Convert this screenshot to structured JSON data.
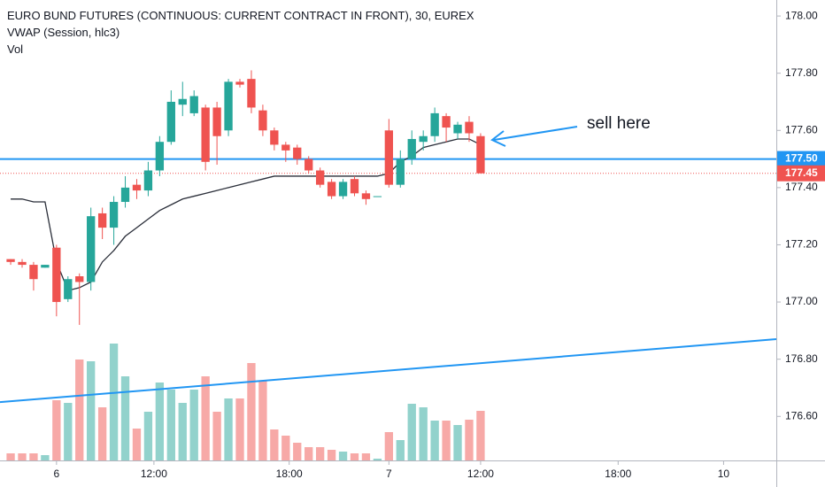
{
  "chart_data": {
    "type": "candlestick",
    "title": "EURO BUND FUTURES (CONTINUOUS: CURRENT CONTRACT IN FRONT), 30, EUREX",
    "legend": [
      "VWAP (Session, hlc3)",
      "Vol"
    ],
    "up_color": "#26a69a",
    "down_color": "#ef5350",
    "volume_up_color": "#92d2cc",
    "volume_down_color": "#f7a9a7",
    "x": [
      0,
      1,
      2,
      3,
      4,
      5,
      6,
      7,
      8,
      9,
      10,
      11,
      12,
      13,
      14,
      15,
      16,
      17,
      18,
      19,
      20,
      21,
      22,
      23,
      24,
      25,
      26,
      27,
      28,
      29,
      30,
      31,
      32,
      33,
      34,
      35,
      36,
      37,
      38,
      39,
      40,
      41
    ],
    "open": [
      177.15,
      177.14,
      177.13,
      177.12,
      177.19,
      177.01,
      177.09,
      177.07,
      177.31,
      177.26,
      177.35,
      177.41,
      177.39,
      177.46,
      177.56,
      177.69,
      177.66,
      177.68,
      177.68,
      177.6,
      177.77,
      177.78,
      177.67,
      177.6,
      177.55,
      177.54,
      177.5,
      177.46,
      177.42,
      177.37,
      177.43,
      177.38,
      177.37,
      177.6,
      177.41,
      177.5,
      177.56,
      177.58,
      177.65,
      177.59,
      177.63,
      177.58
    ],
    "high": [
      177.15,
      177.15,
      177.14,
      177.13,
      177.2,
      177.09,
      177.1,
      177.33,
      177.33,
      177.37,
      177.44,
      177.43,
      177.49,
      177.58,
      177.74,
      177.77,
      177.74,
      177.69,
      177.7,
      177.78,
      177.78,
      177.81,
      177.69,
      177.61,
      177.56,
      177.55,
      177.51,
      177.47,
      177.43,
      177.43,
      177.44,
      177.39,
      177.37,
      177.64,
      177.53,
      177.6,
      177.6,
      177.68,
      177.66,
      177.63,
      177.65,
      177.59
    ],
    "low": [
      177.13,
      177.12,
      177.04,
      177.12,
      176.95,
      177.0,
      176.92,
      177.04,
      177.22,
      177.2,
      177.33,
      177.36,
      177.37,
      177.44,
      177.55,
      177.65,
      177.65,
      177.46,
      177.48,
      177.58,
      177.75,
      177.66,
      177.58,
      177.53,
      177.49,
      177.48,
      177.45,
      177.4,
      177.36,
      177.36,
      177.37,
      177.34,
      177.37,
      177.4,
      177.4,
      177.48,
      177.53,
      177.56,
      177.56,
      177.57,
      177.56,
      177.45
    ],
    "close": [
      177.14,
      177.13,
      177.08,
      177.13,
      177.0,
      177.08,
      177.07,
      177.3,
      177.26,
      177.35,
      177.4,
      177.39,
      177.46,
      177.56,
      177.7,
      177.71,
      177.72,
      177.49,
      177.58,
      177.77,
      177.76,
      177.68,
      177.6,
      177.55,
      177.53,
      177.5,
      177.46,
      177.41,
      177.37,
      177.42,
      177.38,
      177.36,
      177.37,
      177.41,
      177.5,
      177.57,
      177.58,
      177.66,
      177.61,
      177.62,
      177.59,
      177.45
    ],
    "volume": {
      "name": "Vol",
      "values": [
        8,
        8,
        8,
        6,
        68,
        65,
        114,
        112,
        60,
        132,
        95,
        36,
        55,
        88,
        80,
        65,
        80,
        95,
        55,
        70,
        70,
        110,
        90,
        35,
        28,
        20,
        15,
        15,
        12,
        10,
        8,
        8,
        2,
        32,
        23,
        64,
        60,
        45,
        45,
        40,
        46,
        56
      ]
    },
    "vwap": {
      "name": "VWAP (Session, hlc3)",
      "color": "#2a2e39",
      "values": [
        177.36,
        177.36,
        177.35,
        177.35,
        177.14,
        177.04,
        177.05,
        177.07,
        177.14,
        177.18,
        177.23,
        177.26,
        177.29,
        177.32,
        177.34,
        177.36,
        177.37,
        177.38,
        177.39,
        177.4,
        177.41,
        177.42,
        177.43,
        177.44,
        177.44,
        177.44,
        177.44,
        177.44,
        177.44,
        177.44,
        177.44,
        177.44,
        177.44,
        177.45,
        177.49,
        177.51,
        177.54,
        177.55,
        177.56,
        177.57,
        177.57,
        177.55
      ]
    },
    "hlines": [
      {
        "value": 177.5,
        "label": "177.50",
        "color": "#2196f3",
        "style": "solid"
      },
      {
        "value": 177.45,
        "label": "177.45",
        "color": "#ef5350",
        "style": "dotted"
      }
    ],
    "trendline": {
      "color": "#2196f3",
      "x": [
        -0.93,
        66.8
      ],
      "values": [
        176.65,
        176.87
      ]
    },
    "annotation": {
      "text": "sell here",
      "color": "#2196f3"
    },
    "xlim": [
      -0.93,
      66.8
    ],
    "ylim": [
      176.446,
      178.056
    ],
    "xticks": [
      {
        "value": 4,
        "label": "6"
      },
      {
        "value": 12.5,
        "label": "12:00"
      },
      {
        "value": 24.3,
        "label": "18:00"
      },
      {
        "value": 33,
        "label": "7"
      },
      {
        "value": 41,
        "label": "12:00"
      },
      {
        "value": 53,
        "label": "18:00"
      },
      {
        "value": 62.2,
        "label": "10"
      }
    ],
    "yticks": [
      {
        "value": 178.0,
        "label": "178.00"
      },
      {
        "value": 177.8,
        "label": "177.80"
      },
      {
        "value": 177.6,
        "label": "177.60"
      },
      {
        "value": 177.4,
        "label": "177.40"
      },
      {
        "value": 177.2,
        "label": "177.20"
      },
      {
        "value": 177.0,
        "label": "177.00"
      },
      {
        "value": 176.8,
        "label": "176.80"
      },
      {
        "value": 176.6,
        "label": "176.60"
      }
    ]
  }
}
